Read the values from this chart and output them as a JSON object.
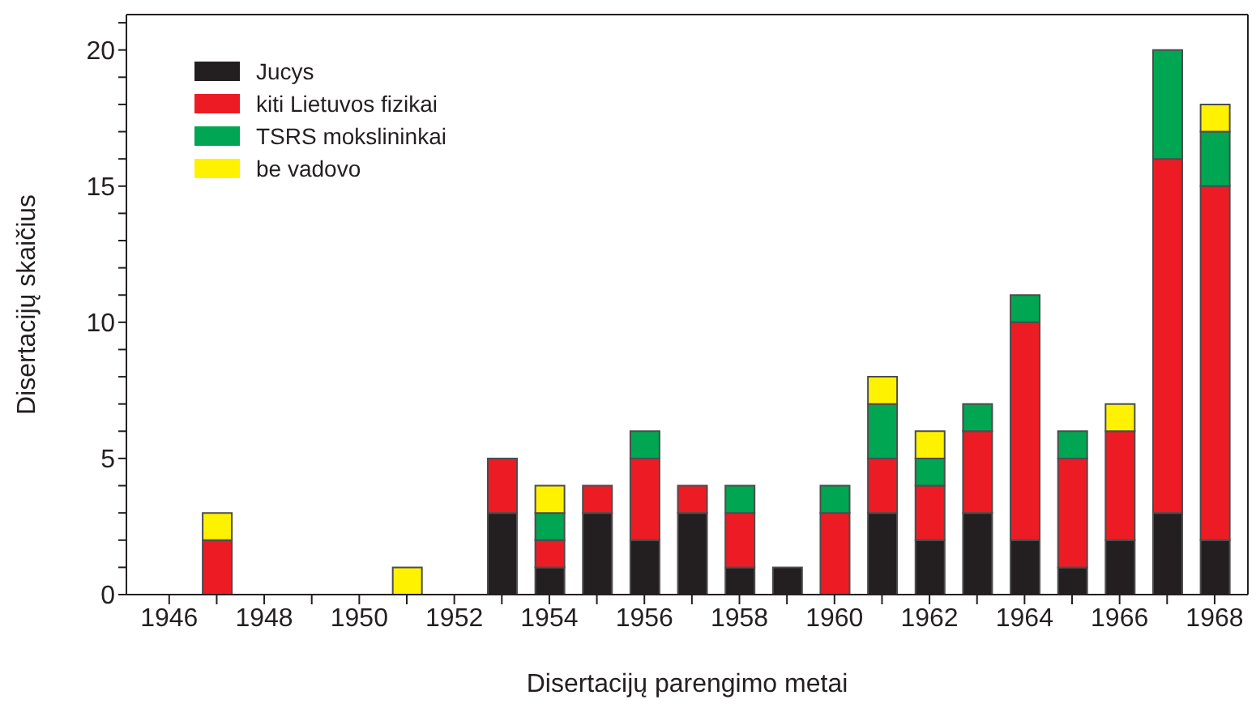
{
  "chart_data": {
    "type": "bar",
    "stacked": true,
    "xlabel": "Disertacijų parengimo metai",
    "ylabel": "Disertacijų skaičius",
    "x": [
      1947,
      1951,
      1953,
      1954,
      1955,
      1956,
      1957,
      1958,
      1959,
      1960,
      1961,
      1962,
      1963,
      1964,
      1965,
      1966,
      1967,
      1968
    ],
    "series": [
      {
        "name": "Jucys",
        "color": "#231f20",
        "values": [
          0,
          0,
          3,
          1,
          3,
          2,
          3,
          1,
          1,
          0,
          3,
          2,
          3,
          2,
          1,
          2,
          3,
          2
        ]
      },
      {
        "name": "kiti Lietuvos fizikai",
        "color": "#ed1c24",
        "values": [
          2,
          0,
          2,
          1,
          1,
          3,
          1,
          2,
          0,
          3,
          2,
          2,
          3,
          8,
          4,
          4,
          13,
          13
        ]
      },
      {
        "name": "TSRS mokslininkai",
        "color": "#00a651",
        "values": [
          0,
          0,
          0,
          1,
          0,
          1,
          0,
          1,
          0,
          1,
          2,
          1,
          1,
          1,
          1,
          0,
          4,
          2
        ]
      },
      {
        "name": "be vadovo",
        "color": "#fff200",
        "values": [
          1,
          1,
          0,
          1,
          0,
          0,
          0,
          0,
          0,
          0,
          1,
          1,
          0,
          0,
          0,
          1,
          0,
          1
        ]
      }
    ],
    "xlim": [
      1945.1,
      1968.7
    ],
    "xticks": [
      1946,
      {
        "value": 1947,
        "label": null
      },
      1948,
      {
        "value": 1949,
        "label": null
      },
      1950,
      {
        "value": 1951,
        "label": null
      },
      1952,
      {
        "value": 1953,
        "label": null
      },
      1954,
      {
        "value": 1955,
        "label": null
      },
      1956,
      {
        "value": 1957,
        "label": null
      },
      1958,
      {
        "value": 1959,
        "label": null
      },
      1960,
      {
        "value": 1961,
        "label": null
      },
      1962,
      {
        "value": 1963,
        "label": null
      },
      1964,
      {
        "value": 1965,
        "label": null
      },
      1966,
      {
        "value": 1967,
        "label": null
      },
      1968
    ],
    "ylim": [
      0,
      21.3
    ],
    "yticks": [
      0,
      {
        "value": 1,
        "label": null
      },
      {
        "value": 2,
        "label": null
      },
      {
        "value": 3,
        "label": null
      },
      {
        "value": 4,
        "label": null
      },
      5,
      {
        "value": 6,
        "label": null
      },
      {
        "value": 7,
        "label": null
      },
      {
        "value": 8,
        "label": null
      },
      {
        "value": 9,
        "label": null
      },
      10,
      {
        "value": 11,
        "label": null
      },
      {
        "value": 12,
        "label": null
      },
      {
        "value": 13,
        "label": null
      },
      {
        "value": 14,
        "label": null
      },
      15,
      {
        "value": 16,
        "label": null
      },
      {
        "value": 17,
        "label": null
      },
      {
        "value": 18,
        "label": null
      },
      {
        "value": 19,
        "label": null
      },
      20,
      {
        "value": 21,
        "label": null
      }
    ],
    "grid": false,
    "legend": "top left"
  }
}
